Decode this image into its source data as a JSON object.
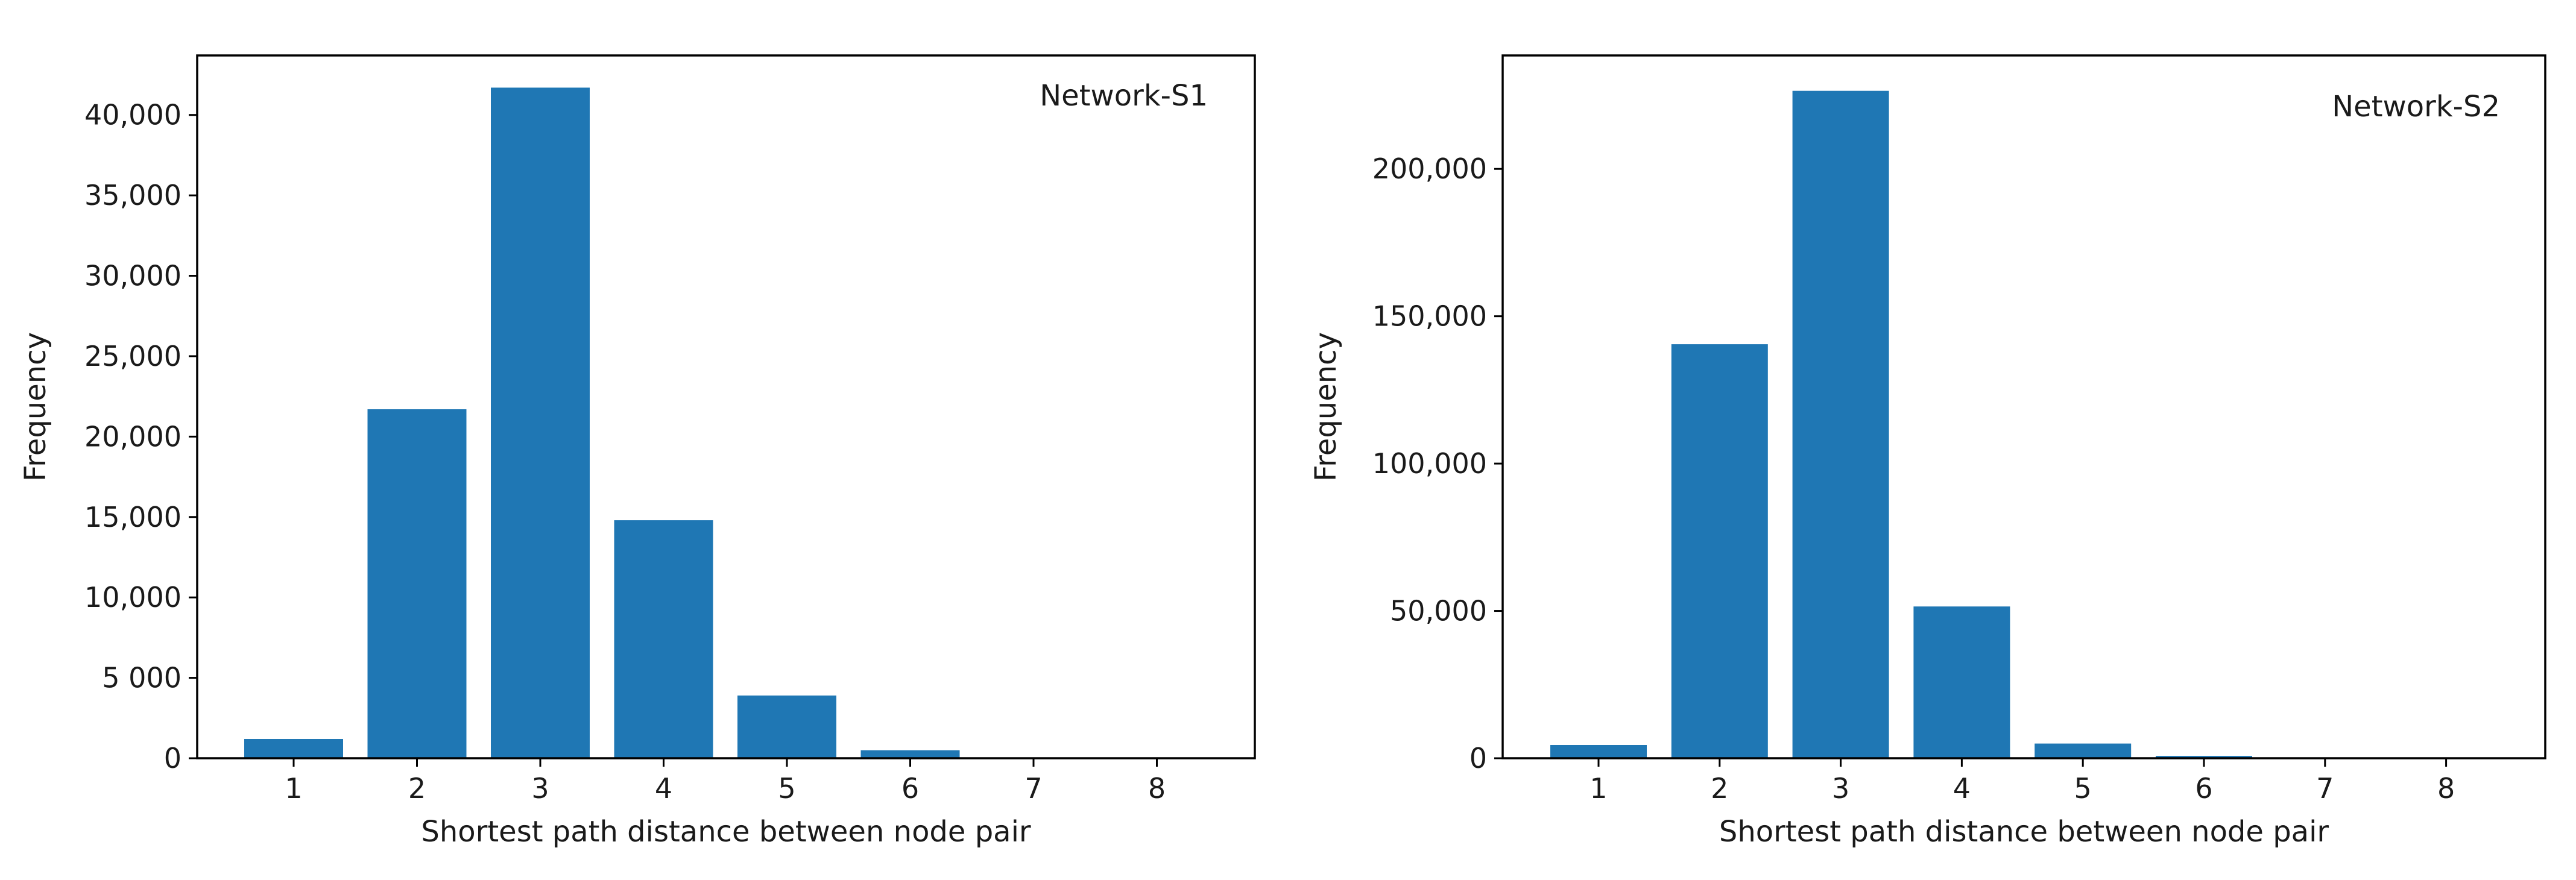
{
  "chart_data": [
    {
      "type": "bar",
      "annotation": "Network-S1",
      "xlabel": "Shortest path distance between node pair",
      "ylabel": "Frequency",
      "categories": [
        "1",
        "2",
        "3",
        "4",
        "5",
        "6",
        "7",
        "8"
      ],
      "values": [
        1200,
        21700,
        41700,
        14800,
        3900,
        500,
        0,
        0
      ],
      "ylim": [
        0,
        43700
      ],
      "yticks": [
        0,
        5000,
        10000,
        15000,
        20000,
        25000,
        30000,
        35000,
        40000
      ],
      "ytick_labels": [
        "0",
        "5 000",
        "10,000",
        "15,000",
        "20,000",
        "25,000",
        "30,000",
        "35,000",
        "40,000"
      ],
      "legend_position": "top-right",
      "grid": false,
      "color": "#1f77b4"
    },
    {
      "type": "bar",
      "annotation": "Network-S2",
      "xlabel": "Shortest path distance between node pair",
      "ylabel": "Frequency",
      "categories": [
        "1",
        "2",
        "3",
        "4",
        "5",
        "6",
        "7",
        "8"
      ],
      "values": [
        4500,
        140500,
        226500,
        51500,
        5000,
        800,
        0,
        0
      ],
      "ylim": [
        0,
        238500
      ],
      "yticks": [
        0,
        50000,
        100000,
        150000,
        200000
      ],
      "ytick_labels": [
        "0",
        "50,000",
        "100,000",
        "150,000",
        "200,000"
      ],
      "legend_position": "top-right",
      "grid": false,
      "color": "#1f77b4"
    }
  ]
}
